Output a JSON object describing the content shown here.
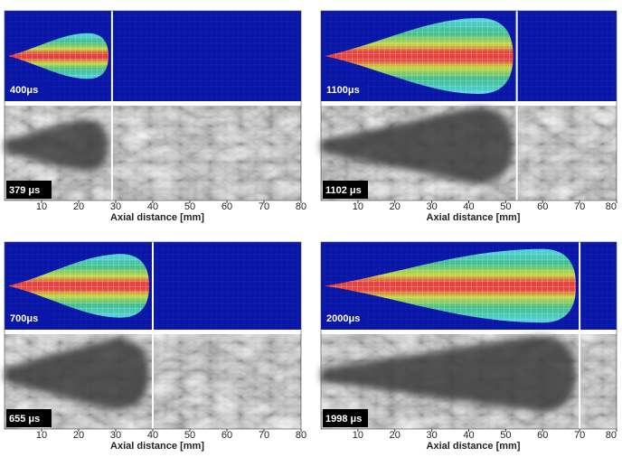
{
  "chart_data": [
    {
      "type": "spray",
      "sim_label": "400μs",
      "photo_label": "379 μs",
      "xlabel": "Axial distance [mm]",
      "xlim": [
        0,
        80
      ],
      "xticks": [
        10,
        20,
        30,
        40,
        50,
        60,
        70,
        80
      ],
      "marker": 29
    },
    {
      "type": "spray",
      "sim_label": "1100μs",
      "photo_label": "1102 μs",
      "xlabel": "Axial distance [mm]",
      "xlim": [
        0,
        80
      ],
      "xticks": [
        10,
        20,
        30,
        40,
        50,
        60,
        70,
        80
      ],
      "marker": 53
    },
    {
      "type": "spray",
      "sim_label": "700μs",
      "photo_label": "655 μs",
      "xlabel": "Axial distance [mm]",
      "xlim": [
        0,
        80
      ],
      "xticks": [
        10,
        20,
        30,
        40,
        50,
        60,
        70,
        80
      ],
      "marker": 40
    },
    {
      "type": "spray",
      "sim_label": "2000μs",
      "photo_label": "1998 μs",
      "xlabel": "Axial distance [mm]",
      "xlim": [
        0,
        80
      ],
      "xticks": [
        10,
        20,
        30,
        40,
        50,
        60,
        70,
        80
      ],
      "marker": 70
    }
  ]
}
